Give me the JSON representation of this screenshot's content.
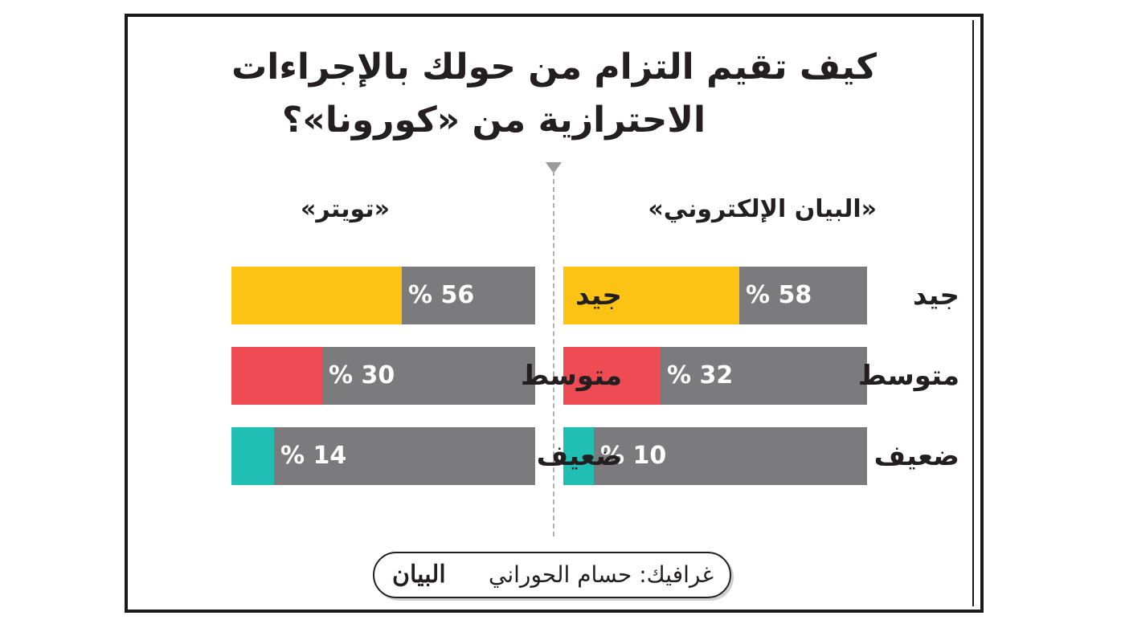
{
  "title_line1": "كيف تقيم التزام من حولك بالإجراءات",
  "title_line2": "الاحترازية من «كورونا»؟",
  "credit": "غرافيك: حسام الحوراني",
  "logo": "البيان",
  "colors": {
    "good": "#fcc314",
    "average": "#ee4b54",
    "weak": "#20beb3",
    "remainder": "#7b7a7c"
  },
  "chart_data": [
    {
      "type": "bar",
      "title": "«البيان الإلكتروني»",
      "categories": [
        "جيد",
        "متوسط",
        "ضعيف"
      ],
      "values": [
        58,
        32,
        10
      ],
      "value_labels": [
        "% 58",
        "% 32",
        "% 10"
      ],
      "ylim": [
        0,
        100
      ]
    },
    {
      "type": "bar",
      "title": "«تويتر»",
      "categories": [
        "جيد",
        "متوسط",
        "ضعيف"
      ],
      "values": [
        56,
        30,
        14
      ],
      "value_labels": [
        "% 56",
        "% 30",
        "% 14"
      ],
      "ylim": [
        0,
        100
      ]
    }
  ]
}
